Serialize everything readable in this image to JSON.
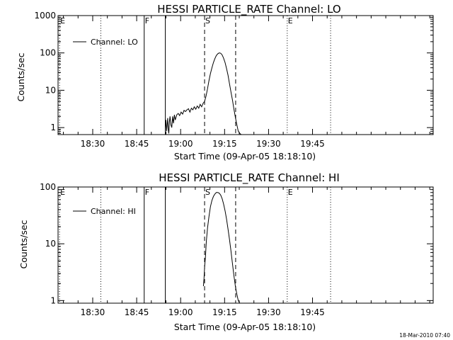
{
  "footer": {
    "timestamp": "18-Mar-2010 07:40"
  },
  "chart_data": [
    {
      "type": "line",
      "title": "HESSI PARTICLE_RATE Channel: LO",
      "xlabel": "Start Time (09-Apr-05 18:18:10)",
      "ylabel": "Counts/sec",
      "x_unit": "minutes after 18:18:10",
      "xlim": [
        0,
        128
      ],
      "ylim": [
        0.65,
        1000
      ],
      "y_scale": "log",
      "x_ticks": [
        {
          "value": 11.83,
          "label": "18:30"
        },
        {
          "value": 26.83,
          "label": "18:45"
        },
        {
          "value": 41.83,
          "label": "19:00"
        },
        {
          "value": 56.83,
          "label": "19:15"
        },
        {
          "value": 71.83,
          "label": "19:30"
        },
        {
          "value": 86.83,
          "label": "19:45"
        }
      ],
      "y_ticks": [
        {
          "value": 1,
          "label": "1"
        },
        {
          "value": 10,
          "label": "10"
        },
        {
          "value": 100,
          "label": "100"
        },
        {
          "value": 1000,
          "label": "1000"
        }
      ],
      "legend": {
        "label": "Channel: LO",
        "position": "top-left"
      },
      "markers": [
        {
          "x": 0.5,
          "style": "dotted",
          "label": "E"
        },
        {
          "x": 14.6,
          "style": "dotted",
          "label": ""
        },
        {
          "x": 29.4,
          "style": "solid",
          "label": "F"
        },
        {
          "x": 36.6,
          "style": "solid",
          "label": ""
        },
        {
          "x": 50.0,
          "style": "dashed",
          "label": "S"
        },
        {
          "x": 60.6,
          "style": "dashed",
          "label": ""
        },
        {
          "x": 78.2,
          "style": "dotted",
          "label": "E"
        },
        {
          "x": 93.0,
          "style": "dotted",
          "label": ""
        }
      ],
      "series": [
        {
          "name": "Channel: LO",
          "x": [
            36.6,
            36.8,
            37.0,
            37.2,
            37.4,
            37.6,
            37.8,
            38.0,
            38.2,
            38.5,
            38.8,
            39.1,
            39.4,
            39.7,
            40.0,
            40.5,
            41.0,
            41.5,
            42.0,
            42.5,
            43.0,
            43.5,
            44.0,
            44.5,
            45.0,
            45.5,
            46.0,
            46.5,
            47.0,
            47.5,
            48.0,
            48.5,
            49.0,
            49.5,
            50.0,
            50.5,
            51.0,
            51.5,
            52.0,
            52.5,
            53.0,
            53.5,
            54.0,
            54.5,
            55.0,
            55.5,
            56.0,
            56.5,
            57.0,
            57.5,
            58.0,
            58.5,
            59.0,
            59.5,
            60.0,
            60.5,
            61.0,
            61.5,
            62.0,
            62.5,
            63.0
          ],
          "values": [
            1.0,
            1.6,
            0.8,
            1.1,
            1.8,
            0.9,
            0.7,
            1.4,
            2.0,
            1.2,
            1.0,
            2.0,
            1.3,
            2.2,
            1.6,
            2.2,
            2.4,
            2.1,
            2.6,
            2.3,
            2.9,
            2.7,
            3.0,
            3.2,
            2.6,
            3.3,
            3.0,
            3.6,
            3.1,
            3.8,
            3.3,
            4.2,
            3.6,
            4.5,
            5.0,
            7.0,
            11.0,
            18.0,
            28.0,
            40.0,
            55.0,
            70.0,
            85.0,
            95.0,
            100.0,
            98.0,
            88.0,
            72.0,
            55.0,
            38.0,
            25.0,
            15.0,
            9.0,
            5.5,
            3.2,
            1.9,
            1.2,
            0.8,
            0.7,
            0.65,
            0.65
          ]
        }
      ]
    },
    {
      "type": "line",
      "title": "HESSI PARTICLE_RATE Channel: HI",
      "xlabel": "Start Time (09-Apr-05 18:18:10)",
      "ylabel": "Counts/sec",
      "x_unit": "minutes after 18:18:10",
      "xlim": [
        0,
        128
      ],
      "ylim": [
        0.9,
        100
      ],
      "y_scale": "log",
      "x_ticks": [
        {
          "value": 11.83,
          "label": "18:30"
        },
        {
          "value": 26.83,
          "label": "18:45"
        },
        {
          "value": 41.83,
          "label": "19:00"
        },
        {
          "value": 56.83,
          "label": "19:15"
        },
        {
          "value": 71.83,
          "label": "19:30"
        },
        {
          "value": 86.83,
          "label": "19:45"
        }
      ],
      "y_ticks": [
        {
          "value": 1,
          "label": "1"
        },
        {
          "value": 10,
          "label": "10"
        },
        {
          "value": 100,
          "label": "100"
        }
      ],
      "legend": {
        "label": "Channel: HI",
        "position": "top-left"
      },
      "markers": [
        {
          "x": 0.5,
          "style": "dotted",
          "label": "E"
        },
        {
          "x": 14.6,
          "style": "dotted",
          "label": ""
        },
        {
          "x": 29.4,
          "style": "solid",
          "label": "F"
        },
        {
          "x": 36.6,
          "style": "solid",
          "label": ""
        },
        {
          "x": 50.0,
          "style": "dashed",
          "label": "S"
        },
        {
          "x": 60.6,
          "style": "dashed",
          "label": ""
        },
        {
          "x": 78.2,
          "style": "dotted",
          "label": "E"
        },
        {
          "x": 93.0,
          "style": "dotted",
          "label": ""
        }
      ],
      "series": [
        {
          "name": "Channel: HI",
          "x": [
            49.6,
            49.8,
            50.0,
            50.3,
            50.6,
            51.0,
            51.5,
            52.0,
            52.5,
            53.0,
            53.5,
            54.0,
            54.5,
            55.0,
            55.5,
            56.0,
            56.5,
            57.0,
            57.5,
            58.0,
            58.5,
            59.0,
            59.5,
            60.0,
            60.5,
            61.0,
            61.5,
            62.0
          ],
          "values": [
            1.8,
            2.4,
            3.8,
            6.0,
            11.0,
            19.0,
            30.0,
            45.0,
            58.0,
            68.0,
            75.0,
            80.0,
            80.0,
            78.0,
            72.0,
            62.0,
            50.0,
            38.0,
            27.0,
            18.0,
            12.0,
            7.5,
            4.5,
            2.8,
            1.8,
            1.3,
            1.0,
            0.9
          ]
        }
      ]
    }
  ]
}
